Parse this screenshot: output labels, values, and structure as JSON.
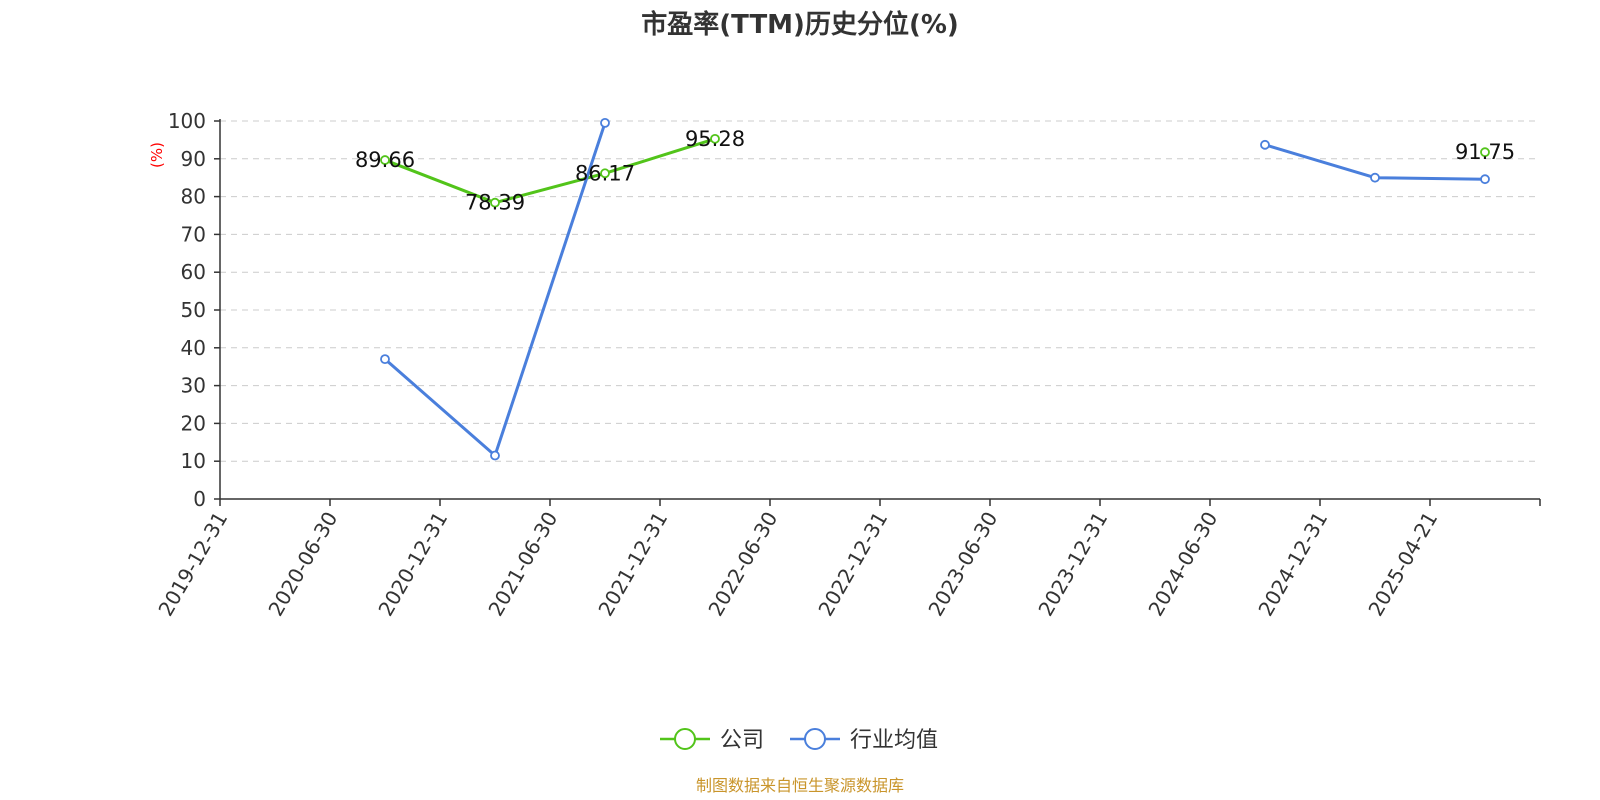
{
  "colors": {
    "company": "#52c41a",
    "industry": "#4a7fdc",
    "unit": "#ff0000",
    "source": "#c9952b",
    "grid": "#cccccc",
    "axis": "#333333"
  },
  "chart_data": {
    "type": "line",
    "title": "市盈率(TTM)历史分位(%)",
    "ylabel": "(%)",
    "ylim": [
      0,
      100
    ],
    "yticks": [
      0,
      10,
      20,
      30,
      40,
      50,
      60,
      70,
      80,
      90,
      100
    ],
    "categories": [
      "2019-12-31",
      "2020-06-30",
      "2020-12-31",
      "2021-06-30",
      "2021-12-31",
      "2022-06-30",
      "2022-12-31",
      "2023-06-30",
      "2023-12-31",
      "2024-06-30",
      "2024-12-31",
      "2025-04-21"
    ],
    "grid": true,
    "legend_position": "bottom",
    "series": [
      {
        "name": "公司",
        "color_key": "company",
        "show_labels": true,
        "values": [
          null,
          89.66,
          78.39,
          86.17,
          95.28,
          null,
          null,
          null,
          null,
          null,
          null,
          91.75
        ],
        "labels": [
          "",
          "89.66",
          "78.39",
          "86.17",
          "95.28",
          "",
          "",
          "",
          "",
          "",
          "",
          "91.75"
        ]
      },
      {
        "name": "行业均值",
        "color_key": "industry",
        "show_labels": false,
        "values": [
          null,
          37,
          11.5,
          99.5,
          null,
          null,
          null,
          null,
          null,
          93.7,
          85,
          84.6
        ]
      }
    ]
  },
  "footer": {
    "source": "制图数据来自恒生聚源数据库"
  }
}
